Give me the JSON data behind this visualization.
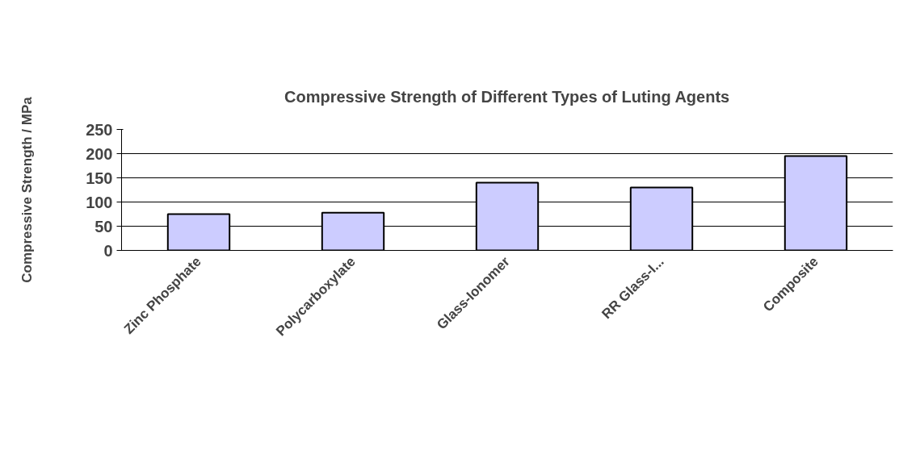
{
  "chart_data": {
    "type": "bar",
    "title": "Compressive Strength of Different Types of Luting Agents",
    "ylabel": "Compressive Strength / MPa",
    "categories": [
      "Zinc Phosphate",
      "Polycarboxylate",
      "Glass-Ionomer",
      "RR Glass-I...",
      "Composite"
    ],
    "values": [
      75,
      78,
      140,
      130,
      195
    ],
    "color": "#ccccff",
    "ylim": [
      0,
      250
    ],
    "yticks": [
      0,
      50,
      100,
      150,
      200,
      250
    ],
    "grid": "y"
  }
}
